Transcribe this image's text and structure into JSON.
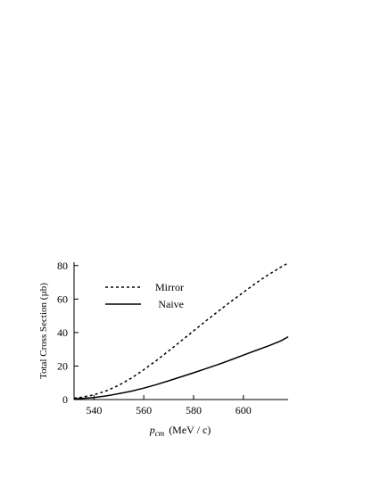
{
  "chart_data": {
    "type": "line",
    "title": "",
    "xlabel": {
      "italic": "p",
      "sub": "cm",
      "unit": "(MeV / c)"
    },
    "ylabel": "Total Cross Section (µb)",
    "xlim": [
      532,
      618
    ],
    "ylim": [
      0,
      82
    ],
    "xticks": [
      540,
      560,
      580,
      600
    ],
    "yticks": [
      0,
      20,
      40,
      60,
      80
    ],
    "grid": false,
    "legend": "top-left",
    "series": [
      {
        "name": "Mirror",
        "style": "dashed",
        "color": "#000000",
        "x": [
          532,
          535,
          540,
          545,
          550,
          555,
          560,
          565,
          570,
          575,
          580,
          585,
          590,
          595,
          600,
          605,
          610,
          615,
          618
        ],
        "y": [
          0.8,
          1.4,
          2.8,
          5.2,
          8.5,
          12.8,
          17.8,
          23.2,
          29,
          35,
          41,
          47,
          52.8,
          58.5,
          64,
          69.5,
          74.5,
          79,
          81.5
        ]
      },
      {
        "name": "Naive",
        "style": "solid",
        "color": "#000000",
        "x": [
          532,
          535,
          540,
          545,
          550,
          555,
          560,
          565,
          570,
          575,
          580,
          585,
          590,
          595,
          600,
          605,
          610,
          615,
          618
        ],
        "y": [
          0.5,
          0.7,
          1.2,
          2.2,
          3.5,
          5,
          6.8,
          8.9,
          11.2,
          13.6,
          16,
          18.5,
          21,
          23.7,
          26.5,
          29.3,
          32,
          35,
          37.5
        ]
      }
    ]
  }
}
